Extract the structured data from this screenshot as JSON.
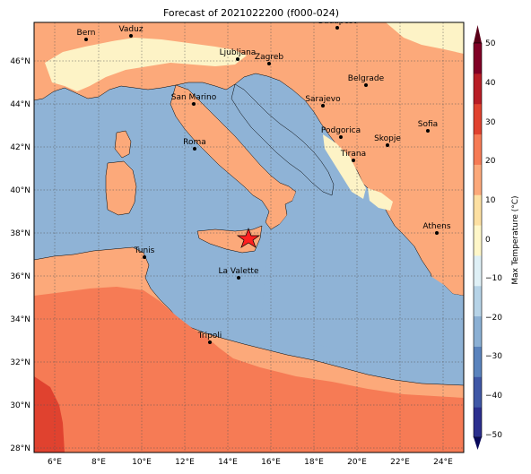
{
  "title": "Forecast of 2021022200 (f000-024)",
  "lon_ticks": [
    "6°E",
    "8°E",
    "10°E",
    "12°E",
    "14°E",
    "16°E",
    "18°E",
    "20°E",
    "22°E",
    "24°E"
  ],
  "lat_ticks": [
    "46°N",
    "44°N",
    "42°N",
    "40°N",
    "38°N",
    "36°N",
    "34°N",
    "32°N",
    "30°N",
    "28°N"
  ],
  "colorbar": {
    "label": "Max Temperature (°C)",
    "ticks": [
      "50",
      "40",
      "30",
      "20",
      "10",
      "0",
      "−10",
      "−20",
      "−30",
      "−40",
      "−50"
    ],
    "colors": [
      "#2b2f8e",
      "#3f57a6",
      "#5a83bd",
      "#8bb0d4",
      "#b6d3e7",
      "#dff0f6",
      "#fff7c9",
      "#fde0a2",
      "#fca97a",
      "#f67b55",
      "#e0422f",
      "#b81d26",
      "#800026"
    ]
  },
  "colors": {
    "sea": "#8fb3d6",
    "land_warm": "#fca97a",
    "land_mild": "#fdf3c6",
    "land_hot": "#f67b55",
    "land_hotter": "#e0422f",
    "marker": "#ff2020"
  },
  "marker_icon": "star-marker",
  "cities": [
    {
      "name": "Bern"
    },
    {
      "name": "Vaduz"
    },
    {
      "name": "Budapest"
    },
    {
      "name": "Ljubljana"
    },
    {
      "name": "Zagreb"
    },
    {
      "name": "Belgrade"
    },
    {
      "name": "San Marino"
    },
    {
      "name": "Sarajevo"
    },
    {
      "name": "Sofia"
    },
    {
      "name": "Podgorica"
    },
    {
      "name": "Skopje"
    },
    {
      "name": "Roma"
    },
    {
      "name": "Tirana"
    },
    {
      "name": "Athens"
    },
    {
      "name": "Tunis"
    },
    {
      "name": "La Valette"
    },
    {
      "name": "Tripoli"
    }
  ]
}
